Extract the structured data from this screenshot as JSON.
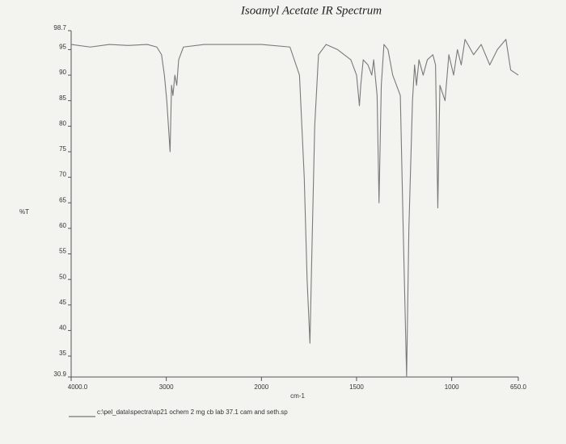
{
  "chart_data": {
    "type": "line",
    "title": "Isoamyl Acetate IR Spectrum",
    "ylabel": "%T",
    "xlabel": "cm-1",
    "footer": "c:\\pel_data\\spectra\\sp21 ochem 2 mg cb lab 37.1 cam and seth.sp",
    "color": "#7a7a7a",
    "xlim": [
      4000,
      650
    ],
    "xticks": [
      {
        "value": 4000,
        "label": "4000.0"
      },
      3000,
      2000,
      1500,
      1000,
      {
        "value": 650,
        "label": "650.0"
      }
    ],
    "xscale_break": 2000,
    "xscale_factor": 2,
    "ylim": [
      30.9,
      98.7
    ],
    "yticks": [
      30.9,
      35,
      40,
      45,
      50,
      55,
      60,
      65,
      70,
      75,
      80,
      85,
      90,
      95,
      98.7
    ],
    "x": [
      4000,
      3800,
      3600,
      3400,
      3200,
      3100,
      3050,
      3020,
      2995,
      2960,
      2945,
      2930,
      2910,
      2890,
      2870,
      2820,
      2600,
      2400,
      2200,
      2000,
      1850,
      1800,
      1775,
      1760,
      1745,
      1735,
      1720,
      1700,
      1660,
      1600,
      1530,
      1500,
      1485,
      1478,
      1465,
      1440,
      1420,
      1410,
      1392,
      1382,
      1370,
      1356,
      1335,
      1310,
      1270,
      1255,
      1237,
      1225,
      1206,
      1195,
      1185,
      1172,
      1150,
      1128,
      1099,
      1085,
      1073,
      1062,
      1035,
      1015,
      990,
      970,
      950,
      930,
      885,
      845,
      800,
      760,
      715,
      690,
      650
    ],
    "values": [
      96,
      95.5,
      96,
      95.8,
      96,
      95.5,
      94,
      90,
      85,
      75,
      88,
      86,
      90,
      88,
      93,
      95.5,
      96,
      96,
      96,
      96,
      95.5,
      90,
      70,
      50,
      37.5,
      55,
      80,
      94,
      96,
      95,
      93,
      90,
      84,
      88,
      93,
      92,
      90,
      93,
      86,
      65,
      88,
      96,
      95,
      90,
      86,
      60,
      30.9,
      60,
      85,
      92,
      88,
      93,
      90,
      93,
      94,
      92,
      64,
      88,
      85,
      94,
      90,
      95,
      92,
      97,
      94,
      96,
      92,
      95,
      97,
      91,
      90
    ]
  }
}
